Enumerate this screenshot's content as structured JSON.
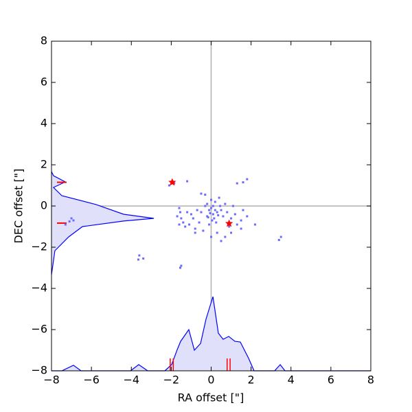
{
  "chart_data": {
    "type": "scatter",
    "xlabel": "RA offset [\"]",
    "ylabel": "DEC offset [\"]",
    "xlim": [
      -8,
      8
    ],
    "ylim": [
      -8,
      8
    ],
    "xticks": [
      {
        "value": -8,
        "label": "−8"
      },
      {
        "value": -6,
        "label": "−6"
      },
      {
        "value": -4,
        "label": "−4"
      },
      {
        "value": -2,
        "label": "−2"
      },
      0,
      2,
      4,
      6,
      8
    ],
    "yticks": [
      {
        "value": -8,
        "label": "−8"
      },
      {
        "value": -6,
        "label": "−6"
      },
      {
        "value": -4,
        "label": "−4"
      },
      {
        "value": -2,
        "label": "−2"
      },
      0,
      2,
      4,
      6,
      8
    ],
    "series": [
      {
        "color": "#6b6bff",
        "x": [
          -2.1,
          -1.85,
          -1.2,
          -1.6,
          -1.55,
          -1.7,
          -1.5,
          -1.4,
          -1.3,
          -1.1,
          -1.6,
          -1.0,
          -0.9,
          -0.8,
          -0.6,
          -0.5,
          -0.4,
          -0.3,
          -0.2,
          -0.1,
          0.0,
          0.1,
          0.15,
          0.2,
          0.25,
          0.3,
          0.4,
          0.5,
          0.6,
          0.7,
          0.8,
          0.9,
          1.0,
          1.1,
          1.2,
          1.3,
          1.5,
          1.6,
          1.8,
          2.2,
          1.3,
          1.6,
          1.8,
          -0.5,
          -0.3,
          0.0,
          0.05,
          -0.1,
          0.3,
          0.45,
          -0.7,
          -1.2,
          0.7,
          0.5,
          0.0,
          -0.8,
          1.0,
          1.5,
          3.5,
          3.4,
          -3.6,
          -3.65,
          -3.4,
          -1.5,
          -1.55,
          -7.0,
          -7.1,
          -7.3,
          -6.9,
          -0.2,
          0.2,
          -0.05,
          0.1,
          -0.15,
          0.35
        ],
        "values": [
          1.0,
          1.1,
          1.2,
          -0.1,
          -0.3,
          -0.5,
          -0.6,
          -0.8,
          -1.0,
          -0.9,
          -0.9,
          -0.4,
          -0.6,
          -1.1,
          -0.8,
          -0.3,
          -1.2,
          0.0,
          -0.5,
          -0.2,
          0.3,
          -0.4,
          -0.6,
          0.2,
          -0.8,
          -1.3,
          0.4,
          -0.2,
          -0.5,
          0.1,
          -0.3,
          -1.0,
          -0.6,
          0.0,
          -0.4,
          -0.9,
          -0.7,
          -0.2,
          -0.5,
          -0.9,
          1.1,
          1.15,
          1.3,
          0.6,
          0.55,
          -0.1,
          -0.7,
          -0.9,
          -0.3,
          0.0,
          -0.2,
          -0.3,
          -1.5,
          -1.7,
          -1.5,
          -1.3,
          -1.3,
          -1.1,
          -1.5,
          -1.65,
          -2.4,
          -2.6,
          -2.55,
          -2.9,
          -3.0,
          -0.6,
          -0.75,
          -0.9,
          -0.7,
          0.1,
          -0.2,
          -0.35,
          0.0,
          -0.55,
          -0.45
        ]
      }
    ],
    "stars": {
      "color": "#ff0000",
      "x": [
        -1.95,
        0.9
      ],
      "values": [
        1.15,
        -0.85
      ]
    },
    "rug_x": {
      "color": "#ff0000",
      "x": [
        -2.05,
        -1.9,
        0.8,
        0.95
      ]
    },
    "rug_y": {
      "color": "#ff0000",
      "values": [
        1.15,
        -0.83
      ]
    },
    "x_marginal": {
      "color": "#0000ff",
      "fill": "#e0e0fa",
      "x": [
        -8,
        -7.48,
        -6.9,
        -6.52,
        -4.04,
        -3.63,
        -3.18,
        -2.32,
        -1.98,
        -1.7,
        -1.53,
        -1.12,
        -0.84,
        -0.53,
        -0.26,
        0.09,
        0.36,
        0.6,
        0.88,
        1.19,
        1.46,
        1.88,
        2.15,
        3.18,
        3.46,
        3.7,
        8
      ],
      "values": [
        -8,
        -8,
        -7.73,
        -8,
        -8,
        -7.7,
        -8,
        -8,
        -7.7,
        -6.97,
        -6.57,
        -6.0,
        -7.0,
        -6.67,
        -5.5,
        -4.4,
        -6.17,
        -6.47,
        -6.33,
        -6.57,
        -6.6,
        -7.4,
        -8,
        -8,
        -7.7,
        -8,
        -8
      ]
    },
    "y_marginal": {
      "color": "#0000ff",
      "fill": "#e0e0fa",
      "x": [
        -8,
        -7.9,
        -7.31,
        -7.9,
        -7.48,
        -5.76,
        -4.39,
        -2.87,
        -4.39,
        -6.45,
        -7.14,
        -7.83,
        -8
      ],
      "values": [
        1.67,
        1.47,
        1.17,
        0.9,
        0.5,
        0.07,
        -0.4,
        -0.6,
        -0.73,
        -1.0,
        -1.5,
        -2.17,
        -3.33
      ]
    }
  }
}
